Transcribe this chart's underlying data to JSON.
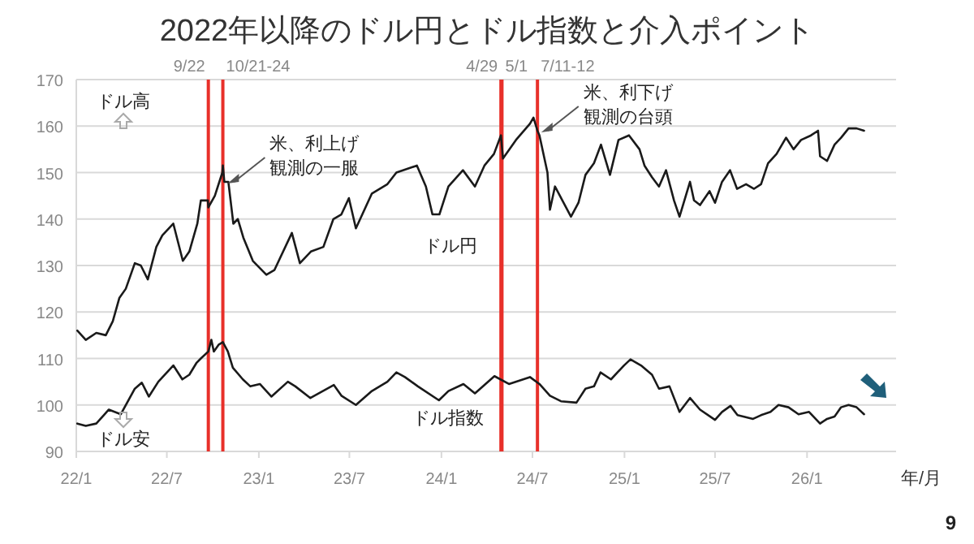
{
  "chart_data": {
    "type": "line",
    "title": "2022年以降のドル円とドル指数と介入ポイント",
    "xlabel": "年/月",
    "grid": "y",
    "line_style": "solid",
    "marker": "none",
    "xlim": [
      "2022-01-01",
      "2026-06-28"
    ],
    "xticks": [
      {
        "value": "2022-01-01",
        "label": "22/1"
      },
      {
        "value": "2022-07-01",
        "label": "22/7"
      },
      {
        "value": "2023-01-01",
        "label": "23/1"
      },
      {
        "value": "2023-07-01",
        "label": "23/7"
      },
      {
        "value": "2024-01-01",
        "label": "24/1"
      },
      {
        "value": "2024-07-01",
        "label": "24/7"
      },
      {
        "value": "2025-01-01",
        "label": "25/1"
      },
      {
        "value": "2025-07-01",
        "label": "25/7"
      },
      {
        "value": "2026-01-01",
        "label": "26/1"
      }
    ],
    "ylim": [
      90,
      170
    ],
    "yticks": [
      90,
      100,
      110,
      120,
      130,
      140,
      150,
      160,
      170
    ],
    "series": [
      {
        "name": "ドル円",
        "color": "#1a1a1a",
        "x": [
          "2022-01-03",
          "2022-01-20",
          "2022-02-10",
          "2022-03-01",
          "2022-03-15",
          "2022-03-28",
          "2022-04-10",
          "2022-04-28",
          "2022-05-10",
          "2022-05-24",
          "2022-06-10",
          "2022-06-22",
          "2022-07-14",
          "2022-08-02",
          "2022-08-15",
          "2022-08-31",
          "2022-09-07",
          "2022-09-21",
          "2022-09-22",
          "2022-10-05",
          "2022-10-20",
          "2022-10-21",
          "2022-10-24",
          "2022-11-01",
          "2022-11-11",
          "2022-11-20",
          "2022-12-01",
          "2022-12-20",
          "2023-01-16",
          "2023-02-01",
          "2023-03-08",
          "2023-03-24",
          "2023-04-15",
          "2023-05-10",
          "2023-05-30",
          "2023-06-15",
          "2023-06-30",
          "2023-07-14",
          "2023-08-15",
          "2023-09-15",
          "2023-10-03",
          "2023-11-13",
          "2023-12-01",
          "2023-12-14",
          "2023-12-28",
          "2024-01-15",
          "2024-02-13",
          "2024-03-08",
          "2024-03-27",
          "2024-04-15",
          "2024-04-29",
          "2024-05-01",
          "2024-05-03",
          "2024-05-29",
          "2024-06-26",
          "2024-07-03",
          "2024-07-11",
          "2024-07-15",
          "2024-07-31",
          "2024-08-05",
          "2024-08-15",
          "2024-09-16",
          "2024-10-01",
          "2024-10-15",
          "2024-11-01",
          "2024-11-15",
          "2024-12-03",
          "2024-12-20",
          "2025-01-10",
          "2025-01-31",
          "2025-02-10",
          "2025-02-25",
          "2025-03-11",
          "2025-03-25",
          "2025-04-10",
          "2025-04-21",
          "2025-05-12",
          "2025-05-20",
          "2025-06-01",
          "2025-06-20",
          "2025-07-01",
          "2025-07-15",
          "2025-07-31",
          "2025-08-14",
          "2025-09-01",
          "2025-09-17",
          "2025-10-01",
          "2025-10-15",
          "2025-11-01",
          "2025-11-20",
          "2025-12-05",
          "2025-12-20",
          "2026-01-09",
          "2026-01-23",
          "2026-01-27",
          "2026-02-10",
          "2026-02-25",
          "2026-03-10",
          "2026-03-25",
          "2026-04-10",
          "2026-04-25"
        ],
        "values": [
          116,
          114,
          115.5,
          115,
          118,
          123,
          125,
          130.5,
          130,
          127,
          134,
          136.5,
          139,
          131,
          133,
          139,
          144,
          144,
          142.5,
          145,
          150,
          151.5,
          148,
          148,
          139,
          140,
          136,
          131,
          128,
          129,
          137,
          130.5,
          133,
          134,
          140,
          141,
          144.5,
          138,
          145.5,
          147.5,
          150,
          151.5,
          147,
          141,
          141,
          147,
          150.5,
          147,
          151.5,
          154,
          158,
          155.5,
          153,
          157,
          160.5,
          161.8,
          159,
          158,
          150,
          142,
          147,
          140.5,
          143.5,
          149.5,
          152,
          156,
          149.5,
          157,
          158,
          155,
          151.5,
          149,
          147,
          150.5,
          144,
          140.5,
          148,
          144,
          143,
          146,
          143.5,
          148,
          150.5,
          146.5,
          147.5,
          146.5,
          147.5,
          152,
          154,
          157.5,
          155,
          157,
          158,
          159,
          153.5,
          152.5,
          156,
          157.5,
          159.5,
          159.5,
          159
        ]
      },
      {
        "name": "ドル指数",
        "color": "#1a1a1a",
        "x": [
          "2022-01-03",
          "2022-01-20",
          "2022-02-10",
          "2022-03-07",
          "2022-03-31",
          "2022-04-28",
          "2022-05-12",
          "2022-05-26",
          "2022-06-14",
          "2022-07-14",
          "2022-08-01",
          "2022-08-15",
          "2022-08-29",
          "2022-09-07",
          "2022-09-22",
          "2022-09-28",
          "2022-10-03",
          "2022-10-13",
          "2022-10-21",
          "2022-10-31",
          "2022-11-10",
          "2022-11-30",
          "2022-12-15",
          "2023-01-03",
          "2023-01-26",
          "2023-02-28",
          "2023-03-15",
          "2023-04-14",
          "2023-05-31",
          "2023-06-15",
          "2023-07-14",
          "2023-08-15",
          "2023-09-15",
          "2023-10-03",
          "2023-10-20",
          "2023-11-15",
          "2023-12-27",
          "2024-01-15",
          "2024-02-14",
          "2024-03-08",
          "2024-04-16",
          "2024-05-15",
          "2024-06-26",
          "2024-07-15",
          "2024-08-05",
          "2024-08-27",
          "2024-09-27",
          "2024-10-15",
          "2024-11-01",
          "2024-11-14",
          "2024-12-05",
          "2024-12-31",
          "2025-01-13",
          "2025-02-03",
          "2025-02-25",
          "2025-03-11",
          "2025-04-01",
          "2025-04-21",
          "2025-05-12",
          "2025-06-01",
          "2025-07-01",
          "2025-07-15",
          "2025-08-01",
          "2025-08-15",
          "2025-09-15",
          "2025-10-01",
          "2025-10-20",
          "2025-11-05",
          "2025-11-25",
          "2025-12-15",
          "2026-01-05",
          "2026-01-27",
          "2026-02-10",
          "2026-02-25",
          "2026-03-10",
          "2026-03-25",
          "2026-04-10",
          "2026-04-25"
        ],
        "values": [
          96,
          95.5,
          96,
          99,
          98,
          103.5,
          104.8,
          101.8,
          105,
          108.5,
          105.5,
          106.5,
          109,
          110,
          111.5,
          114,
          111.5,
          113,
          113.5,
          111.5,
          108,
          105.5,
          104,
          104.5,
          101.8,
          105,
          104,
          101.5,
          104.3,
          102,
          100,
          103,
          105,
          107,
          106,
          104,
          101,
          103,
          104.5,
          102.5,
          106.2,
          104.5,
          106,
          104.5,
          102,
          100.8,
          100.5,
          103.5,
          104,
          107,
          105.5,
          108.5,
          109.8,
          108.5,
          106.5,
          103.5,
          104,
          98.5,
          101.5,
          99,
          96.8,
          98.5,
          99.8,
          97.8,
          97,
          97.8,
          98.5,
          100,
          99.5,
          98,
          98.5,
          96,
          97,
          97.5,
          99.5,
          100,
          99.5,
          98
        ]
      }
    ],
    "ref_lines": [
      {
        "axis": "x",
        "value": "2022-09-22",
        "label": "9/22",
        "color": "#e8302a"
      },
      {
        "axis": "x",
        "value": "2022-10-21",
        "label": "10/21-24",
        "color": "#e8302a"
      },
      {
        "axis": "x",
        "value": "2024-04-29",
        "label": "4/29",
        "color": "#e8302a"
      },
      {
        "axis": "x",
        "value": "2024-05-01",
        "label": "5/1",
        "color": "#e8302a"
      },
      {
        "axis": "x",
        "value": "2024-07-11",
        "label": "7/11-12",
        "color": "#e8302a"
      }
    ],
    "annotations": [
      {
        "text": "米、利上げ観測の一服",
        "x": "2022-10-24",
        "y": 148
      },
      {
        "text": "米、利下げ観測の台頭",
        "x": "2024-07-12",
        "y": 159
      },
      "ドル高",
      "ドル安",
      "9"
    ]
  }
}
